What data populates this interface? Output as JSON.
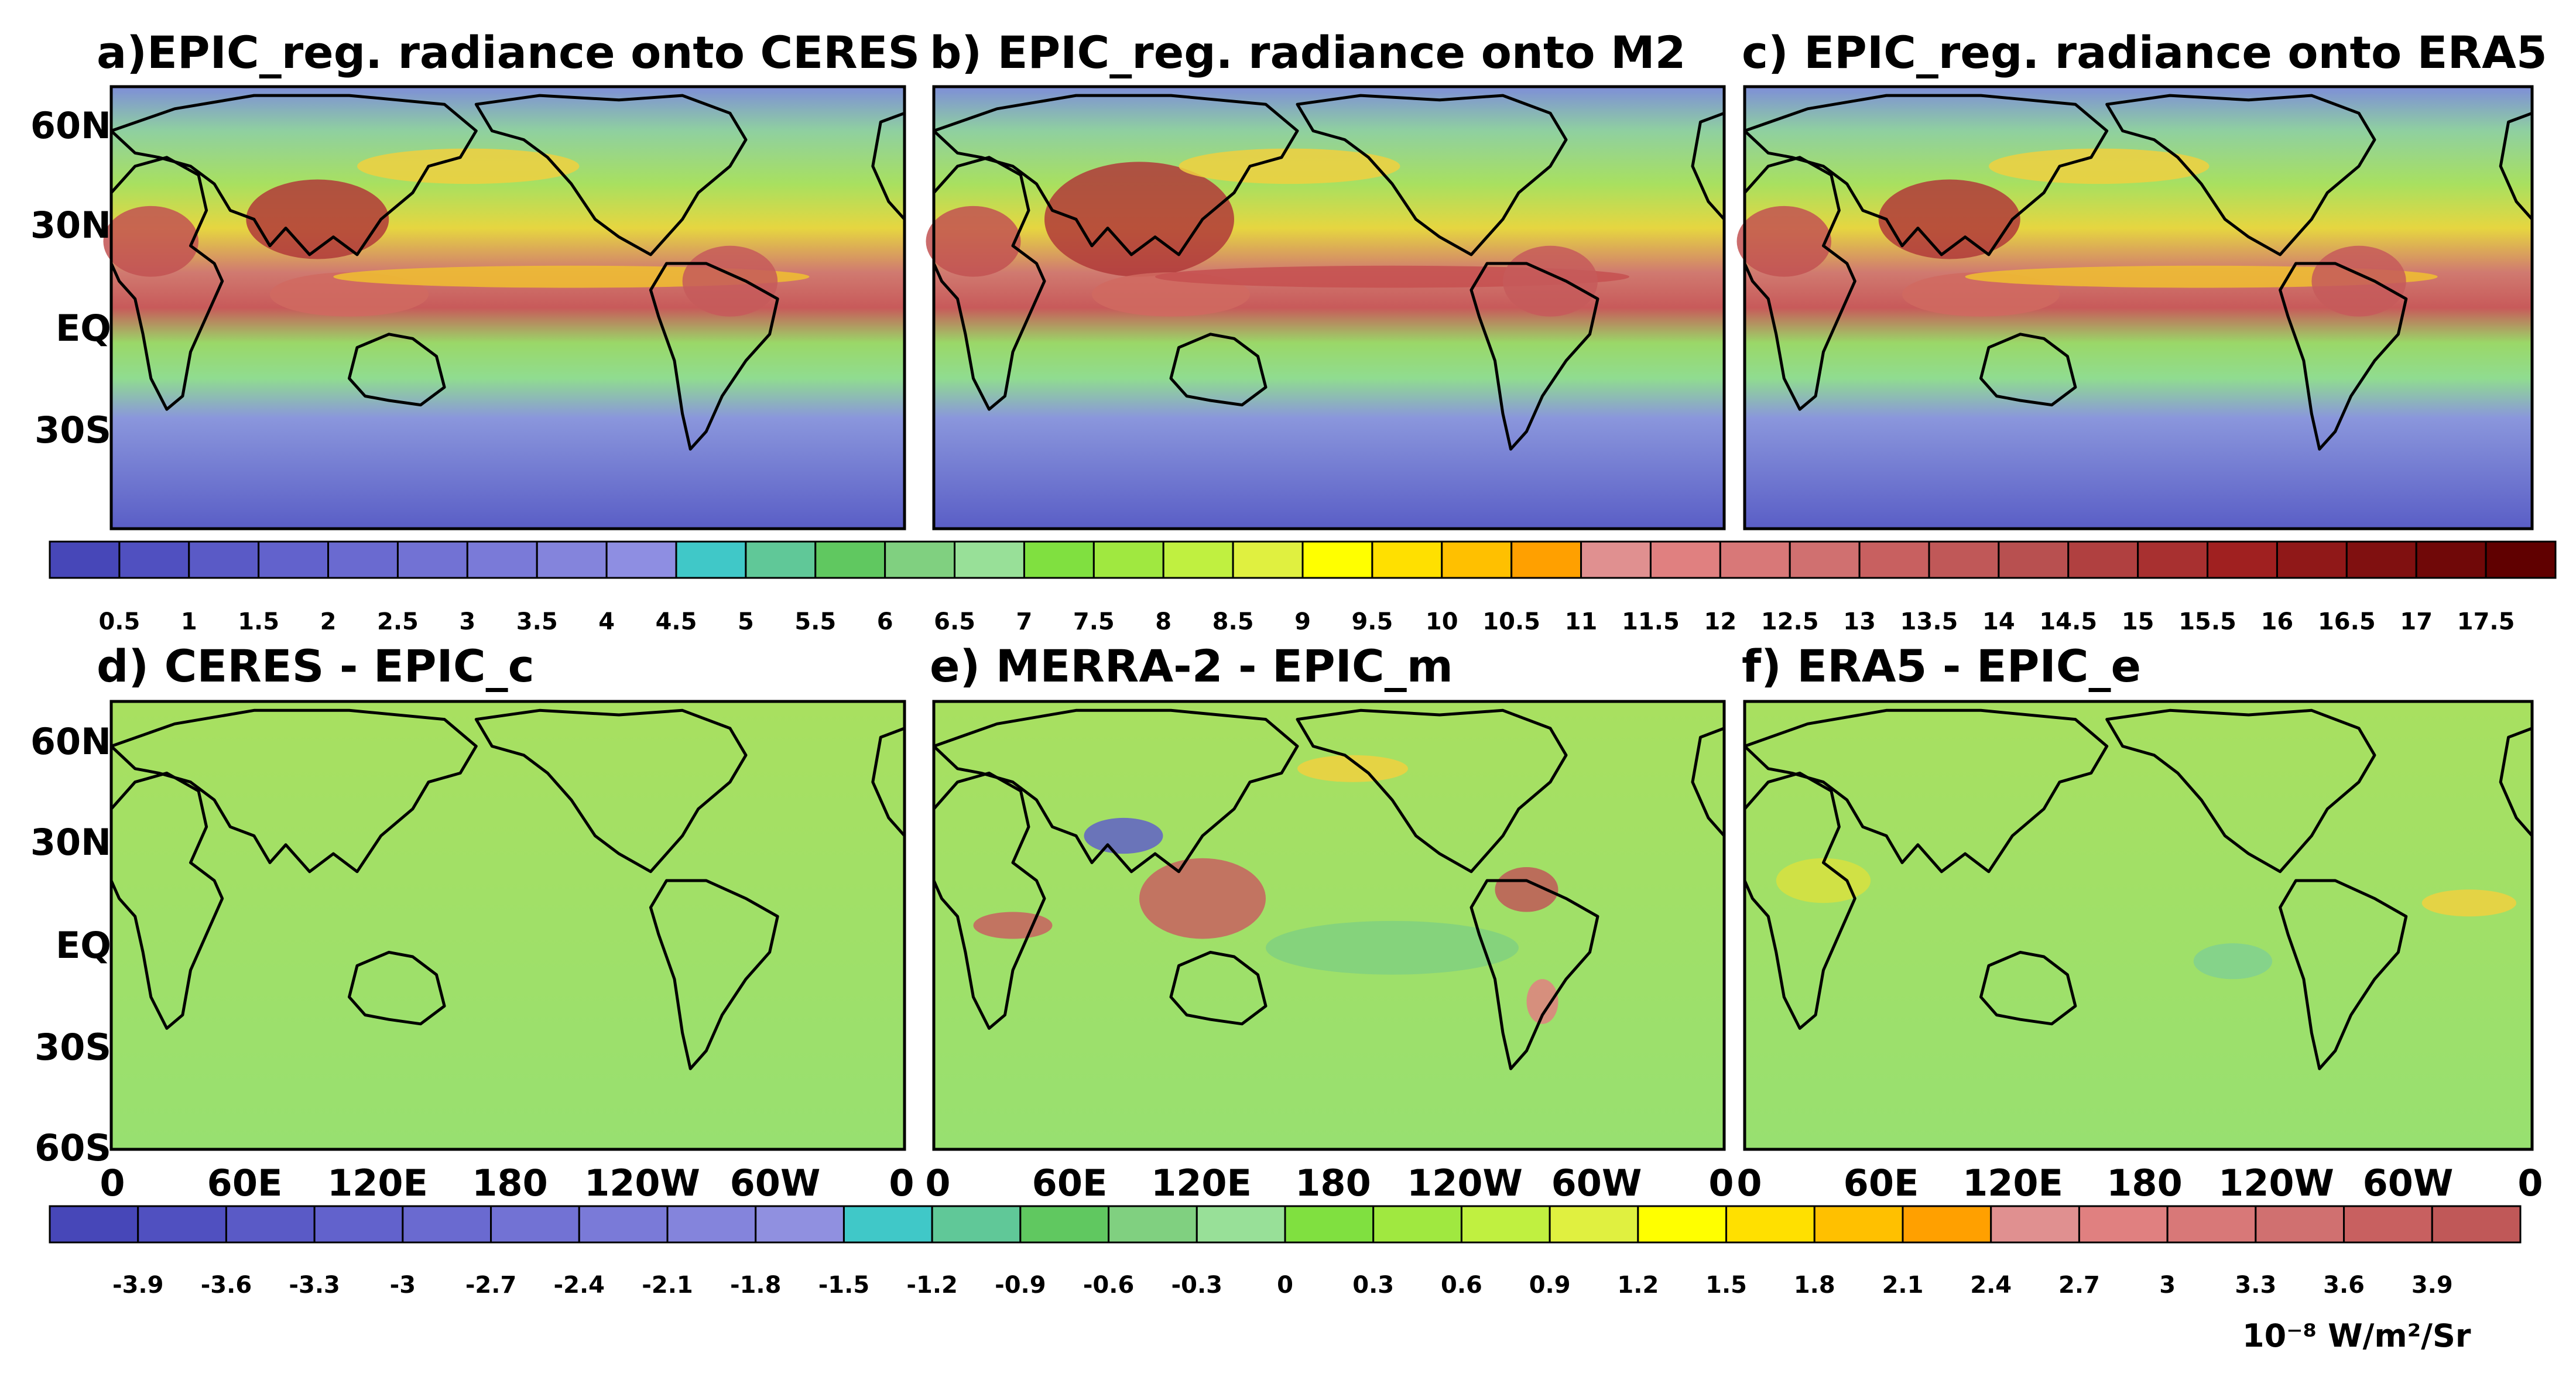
{
  "panels": [
    {
      "id": "a",
      "title": "a)EPIC_reg. radiance onto CERES",
      "colorbar": "top",
      "style": "radiance"
    },
    {
      "id": "b",
      "title": "b) EPIC_reg. radiance onto M2",
      "colorbar": "top",
      "style": "radiance-strong"
    },
    {
      "id": "c",
      "title": "c) EPIC_reg. radiance onto ERA5",
      "colorbar": "top",
      "style": "radiance"
    },
    {
      "id": "d",
      "title": "d) CERES - EPIC_c",
      "colorbar": "bottom",
      "style": "diff-flat"
    },
    {
      "id": "e",
      "title": "e) MERRA-2 - EPIC_m",
      "colorbar": "bottom",
      "style": "diff-strong"
    },
    {
      "id": "f",
      "title": "f) ERA5 - EPIC_e",
      "colorbar": "bottom",
      "style": "diff-weak"
    }
  ],
  "latitude_labels_top": [
    "60N",
    "30N",
    "EQ",
    "30S"
  ],
  "latitude_labels_bottom": [
    "60N",
    "30N",
    "EQ",
    "30S",
    "60S"
  ],
  "longitude_labels": [
    "0",
    "60E",
    "120E",
    "180",
    "120W",
    "60W",
    "0"
  ],
  "colorbar_top": {
    "labels": [
      "0.5",
      "1",
      "1.5",
      "2",
      "2.5",
      "3",
      "3.5",
      "4",
      "4.5",
      "5",
      "5.5",
      "6",
      "6.5",
      "7",
      "7.5",
      "8",
      "8.5",
      "9",
      "9.5",
      "10",
      "10.5",
      "11",
      "11.5",
      "12",
      "12.5",
      "13",
      "13.5",
      "14",
      "14.5",
      "15",
      "15.5",
      "16",
      "16.5",
      "17",
      "17.5"
    ],
    "colors": [
      "#4747b8",
      "#5050c0",
      "#5a5ac6",
      "#6262cc",
      "#6a6ad0",
      "#7272d4",
      "#7a7ad8",
      "#8484dc",
      "#8e8ee2",
      "#40c8c8",
      "#60c898",
      "#60c860",
      "#80d080",
      "#98e098",
      "#80e040",
      "#a0e840",
      "#c0f040",
      "#e0f040",
      "#ffff00",
      "#ffe000",
      "#ffc000",
      "#ffa000",
      "#e09090",
      "#e08080",
      "#d87878",
      "#d07070",
      "#c86060",
      "#c05858",
      "#b85050",
      "#b04040",
      "#a83030",
      "#a02020",
      "#901818",
      "#801010",
      "#700808",
      "#600000"
    ]
  },
  "colorbar_bottom": {
    "labels": [
      "-3.9",
      "-3.6",
      "-3.3",
      "-3",
      "-2.7",
      "-2.4",
      "-2.1",
      "-1.8",
      "-1.5",
      "-1.2",
      "-0.9",
      "-0.6",
      "-0.3",
      "0",
      "0.3",
      "0.6",
      "0.9",
      "1.2",
      "1.5",
      "1.8",
      "2.1",
      "2.4",
      "2.7",
      "3",
      "3.3",
      "3.6",
      "3.9"
    ],
    "colors": [
      "#4747b8",
      "#5050c0",
      "#5a5ac6",
      "#6262cc",
      "#6a6ad0",
      "#7272d4",
      "#7a7ad8",
      "#8484dc",
      "#9090e0",
      "#40c8c8",
      "#60c898",
      "#60c860",
      "#80d080",
      "#98e098",
      "#80e040",
      "#a0e840",
      "#c0f040",
      "#e0f040",
      "#ffff00",
      "#ffe000",
      "#ffc000",
      "#ffa000",
      "#e09090",
      "#e08080",
      "#d87878",
      "#d07070",
      "#c86060",
      "#c05858"
    ]
  },
  "units": "10⁻⁸ W/m²/Sr"
}
